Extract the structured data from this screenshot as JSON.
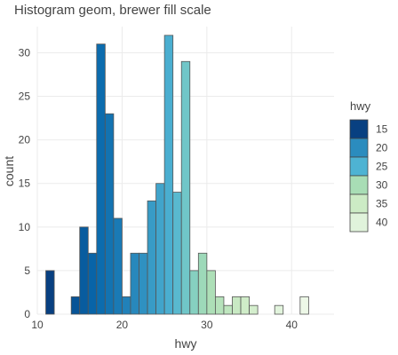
{
  "chart_data": {
    "type": "bar",
    "title": "Histogram geom, brewer fill scale",
    "xlabel": "hwy",
    "ylabel": "count",
    "xlim": [
      10,
      45
    ],
    "ylim": [
      0,
      33
    ],
    "xticks": [
      10,
      20,
      30,
      40
    ],
    "yticks": [
      0,
      5,
      10,
      15,
      20,
      25,
      30
    ],
    "grid": true,
    "bins": [
      {
        "x0": 11,
        "x1": 12,
        "count": 5
      },
      {
        "x0": 12,
        "x1": 13,
        "count": 0
      },
      {
        "x0": 13,
        "x1": 14,
        "count": 0
      },
      {
        "x0": 14,
        "x1": 15,
        "count": 2
      },
      {
        "x0": 15,
        "x1": 16,
        "count": 10
      },
      {
        "x0": 16,
        "x1": 17,
        "count": 7
      },
      {
        "x0": 17,
        "x1": 18,
        "count": 31
      },
      {
        "x0": 18,
        "x1": 19,
        "count": 23
      },
      {
        "x0": 19,
        "x1": 20,
        "count": 11
      },
      {
        "x0": 20,
        "x1": 21,
        "count": 2
      },
      {
        "x0": 21,
        "x1": 22,
        "count": 7
      },
      {
        "x0": 22,
        "x1": 23,
        "count": 7
      },
      {
        "x0": 23,
        "x1": 24,
        "count": 13
      },
      {
        "x0": 24,
        "x1": 25,
        "count": 15
      },
      {
        "x0": 25,
        "x1": 26,
        "count": 32
      },
      {
        "x0": 26,
        "x1": 27,
        "count": 14
      },
      {
        "x0": 27,
        "x1": 28,
        "count": 29
      },
      {
        "x0": 28,
        "x1": 29,
        "count": 5
      },
      {
        "x0": 29,
        "x1": 30,
        "count": 7
      },
      {
        "x0": 30,
        "x1": 31,
        "count": 5
      },
      {
        "x0": 31,
        "x1": 32,
        "count": 2
      },
      {
        "x0": 32,
        "x1": 33,
        "count": 1
      },
      {
        "x0": 33,
        "x1": 34,
        "count": 2
      },
      {
        "x0": 34,
        "x1": 35,
        "count": 2
      },
      {
        "x0": 35,
        "x1": 36,
        "count": 1
      },
      {
        "x0": 36,
        "x1": 37,
        "count": 0
      },
      {
        "x0": 37,
        "x1": 38,
        "count": 0
      },
      {
        "x0": 38,
        "x1": 39,
        "count": 1
      },
      {
        "x0": 39,
        "x1": 40,
        "count": 0
      },
      {
        "x0": 40,
        "x1": 41,
        "count": 0
      },
      {
        "x0": 41,
        "x1": 42,
        "count": 2
      }
    ],
    "fill_scale": {
      "palette": "GnBu (reversed)",
      "stops": [
        {
          "value": 12,
          "color": "#084081"
        },
        {
          "value": 17,
          "color": "#0868ac"
        },
        {
          "value": 22,
          "color": "#2b8cbe"
        },
        {
          "value": 26,
          "color": "#4eb3d3"
        },
        {
          "value": 28,
          "color": "#7bccc4"
        },
        {
          "value": 30,
          "color": "#a8ddb5"
        },
        {
          "value": 34,
          "color": "#ccebc5"
        },
        {
          "value": 38,
          "color": "#e0f3db"
        },
        {
          "value": 44,
          "color": "#f7fcf0"
        }
      ]
    },
    "legend": {
      "title": "hwy",
      "position": "right",
      "entries": [
        {
          "label": "15",
          "color": "#084081"
        },
        {
          "label": "20",
          "color": "#2b8cbe"
        },
        {
          "label": "25",
          "color": "#4eb3d3"
        },
        {
          "label": "30",
          "color": "#a8ddb5"
        },
        {
          "label": "35",
          "color": "#ccebc5"
        },
        {
          "label": "40",
          "color": "#e0f3db"
        }
      ]
    },
    "bar_outline_color": "#555555"
  }
}
